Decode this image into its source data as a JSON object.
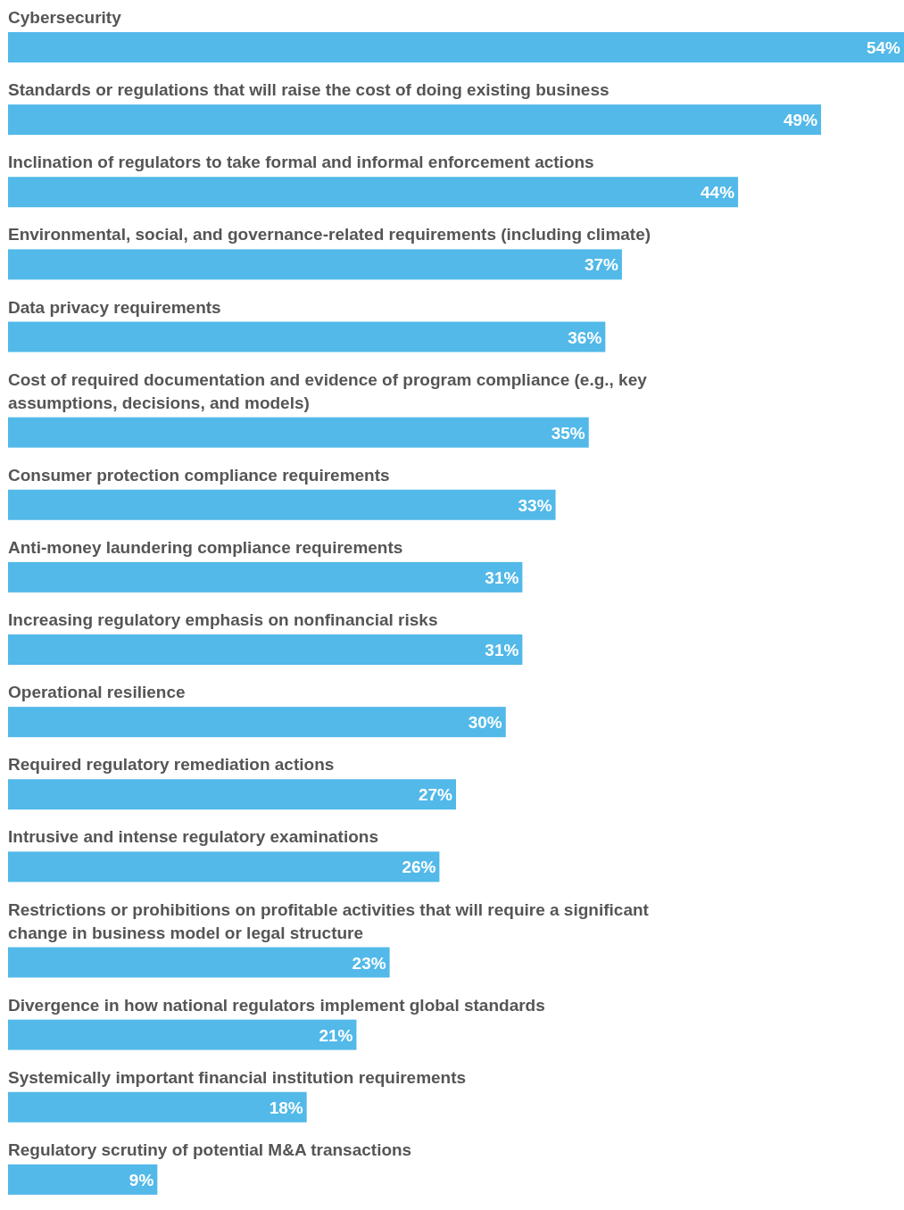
{
  "chart_data": {
    "type": "bar",
    "orientation": "horizontal",
    "color": "#52b9e9",
    "categories": [
      "Cybersecurity",
      "Standards or regulations that will raise the cost of doing existing business",
      "Inclination of regulators to take formal and informal enforcement actions",
      "Environmental, social, and governance-related requirements (including climate)",
      "Data privacy requirements",
      "Cost of required documentation and evidence of program compliance (e.g., key assumptions, decisions, and models)",
      "Consumer protection compliance requirements",
      "Anti-money laundering compliance requirements",
      "Increasing regulatory emphasis on nonfinancial risks",
      "Operational resilience",
      "Required regulatory remediation actions",
      "Intrusive and intense regulatory examinations",
      "Restrictions or prohibitions on profitable activities that will require a significant change in business model or legal structure",
      "Divergence in how national regulators implement global standards",
      "Systemically important financial institution requirements",
      "Regulatory scrutiny of potential M&A transactions"
    ],
    "values": [
      54,
      49,
      44,
      37,
      36,
      35,
      33,
      31,
      31,
      30,
      27,
      26,
      23,
      21,
      18,
      9
    ],
    "value_labels": [
      "54%",
      "49%",
      "44%",
      "37%",
      "36%",
      "35%",
      "33%",
      "31%",
      "31%",
      "30%",
      "27%",
      "26%",
      "23%",
      "21%",
      "18%",
      "9%"
    ]
  }
}
